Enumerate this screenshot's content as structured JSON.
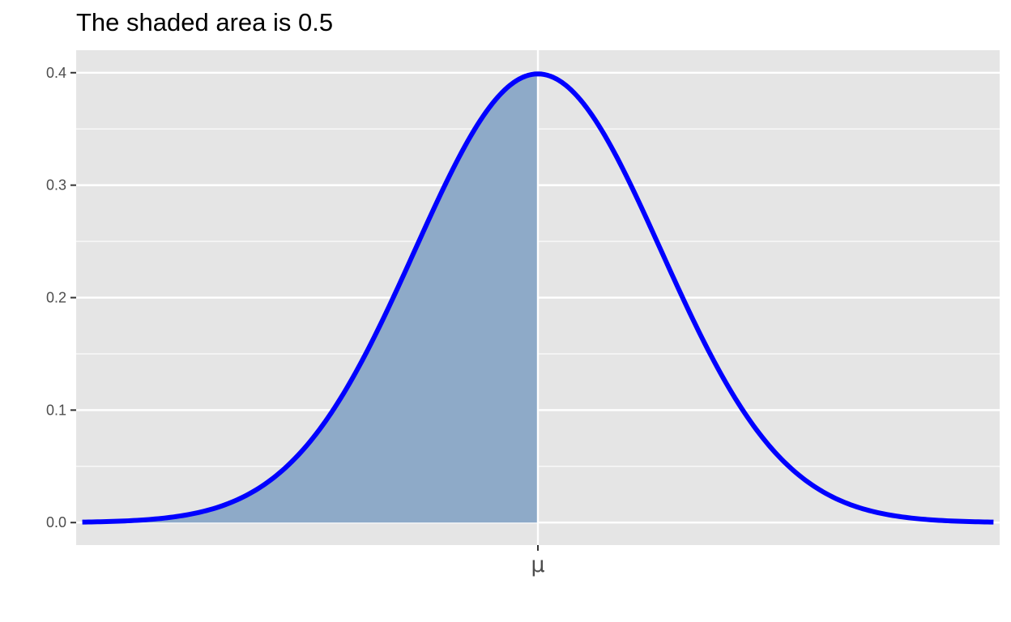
{
  "chart_data": {
    "type": "area",
    "title": "The shaded area is 0.5",
    "xlabel": "",
    "ylabel": "",
    "distribution": "normal",
    "mean": 0,
    "sd": 1,
    "xlim": [
      -3.75,
      3.75
    ],
    "ylim": [
      -0.02,
      0.42
    ],
    "x_curve_range": [
      -3.7,
      3.7
    ],
    "shade_range": [
      -3.7,
      0
    ],
    "shaded_area": 0.5,
    "x_ticks": [
      {
        "value": 0,
        "label": "μ"
      }
    ],
    "y_ticks": [
      {
        "value": 0.0,
        "label": "0.0"
      },
      {
        "value": 0.1,
        "label": "0.1"
      },
      {
        "value": 0.2,
        "label": "0.2"
      },
      {
        "value": 0.3,
        "label": "0.3"
      },
      {
        "value": 0.4,
        "label": "0.4"
      }
    ],
    "y_minor_gridlines": [
      0.05,
      0.15,
      0.25,
      0.35
    ],
    "grid": true,
    "legend": "none"
  },
  "colors": {
    "panel_background": "#e5e5e5",
    "gridline": "#ffffff",
    "curve": "#0000ff",
    "shade": "#8eaac8",
    "axis_text": "#4d4d4d",
    "tick_mark": "#333333"
  }
}
